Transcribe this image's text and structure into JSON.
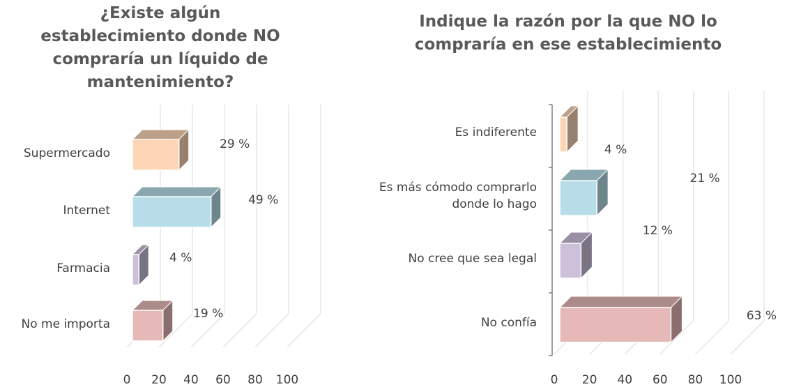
{
  "chart_data": [
    {
      "type": "bar3d",
      "orientation": "horizontal",
      "title": "¿Existe algún establecimiento donde NO compraría un líquido de mantenimiento?",
      "categories": [
        "Supermercado",
        "Internet",
        "Farmacia",
        "No me importa"
      ],
      "values": [
        29,
        49,
        4,
        19
      ],
      "value_labels": [
        "29 %",
        "49 %",
        "4 %",
        "19 %"
      ],
      "colors": [
        "#fcd5b5",
        "#b7dee8",
        "#ccc0da",
        "#e6b9b8"
      ],
      "xlim": [
        0,
        100
      ],
      "xticks": [
        0,
        20,
        40,
        60,
        80,
        100
      ],
      "grid": true
    },
    {
      "type": "bar3d",
      "orientation": "horizontal",
      "title": "Indique la razón por la que NO lo compraría en ese establecimiento",
      "categories": [
        "Es indiferente",
        "Es más cómodo comprarlo donde lo hago",
        "No cree que sea legal",
        "No confía"
      ],
      "values": [
        4,
        21,
        12,
        63
      ],
      "value_labels": [
        "4 %",
        "21 %",
        "12 %",
        "63 %"
      ],
      "colors": [
        "#fcd5b5",
        "#b7dee8",
        "#ccc0da",
        "#e6b9b8"
      ],
      "xlim": [
        0,
        100
      ],
      "xticks": [
        0,
        20,
        40,
        60,
        80,
        100
      ],
      "grid": true
    }
  ]
}
